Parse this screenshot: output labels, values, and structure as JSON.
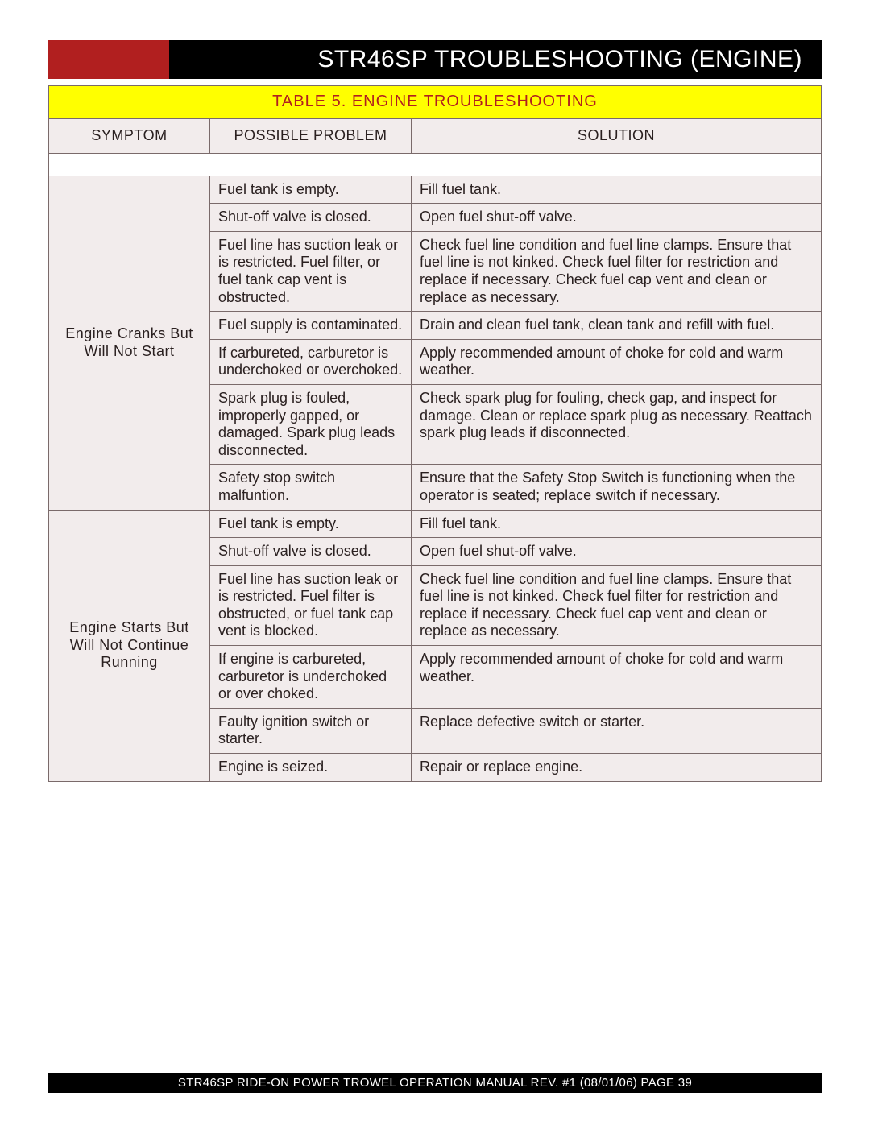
{
  "header": {
    "title": "STR46SP   TROUBLESHOOTING (ENGINE)"
  },
  "table_caption": "TABLE 5.  ENGINE TROUBLESHOOTING",
  "columns": {
    "symptom": "SYMPTOM",
    "problem": "POSSIBLE PROBLEM",
    "solution": "SOLUTION"
  },
  "groups": [
    {
      "symptom": "Engine Cranks But Will Not Start",
      "rows": [
        {
          "problem": "Fuel tank is empty.",
          "solution": "Fill fuel tank."
        },
        {
          "problem": "Shut-off valve is closed.",
          "solution": "Open fuel shut-off valve."
        },
        {
          "problem": "Fuel line has suction leak or is restricted. Fuel filter, or fuel tank cap vent is obstructed.",
          "solution": "Check fuel line condition and fuel line clamps. Ensure that fuel line is not kinked.  Check fuel filter for restriction and replace if necessary.  Check fuel cap vent and clean or replace as necessary."
        },
        {
          "problem": "Fuel supply is contaminated.",
          "solution": "Drain and clean fuel tank, clean tank and refill with fuel."
        },
        {
          "problem": "If carbureted,  carburetor is underchoked or overchoked.",
          "solution": "Apply recommended amount of choke for cold and warm weather."
        },
        {
          "problem": "Spark plug is fouled, improperly gapped, or damaged.  Spark plug leads disconnected.",
          "solution": "Check spark plug for fouling, check gap, and inspect for damage.  Clean or replace spark plug as necessary.  Reattach spark plug leads if disconnected."
        },
        {
          "problem": "Safety stop switch malfuntion.",
          "solution": "Ensure that the Safety Stop Switch is functioning when the operator is seated; replace switch if necessary."
        }
      ]
    },
    {
      "symptom": "Engine Starts But Will Not Continue Running",
      "rows": [
        {
          "problem": "Fuel tank is empty.",
          "solution": "Fill fuel tank."
        },
        {
          "problem": "Shut-off valve is closed.",
          "solution": "Open fuel shut-off valve."
        },
        {
          "problem": "Fuel line has suction leak or is restricted. Fuel filter is obstructed, or fuel tank cap vent is blocked.",
          "solution": "Check fuel line condition and fuel line clamps. Ensure that fuel line is not kinked.  Check fuel filter for restriction and replace if necessary.  Check fuel cap vent and clean or replace as necessary."
        },
        {
          "problem": "If engine is carbureted, carburetor is underchoked or over choked.",
          "solution": "Apply recommended amount of choke for cold and warm weather."
        },
        {
          "problem": "Faulty ignition switch or starter.",
          "solution": "Replace defective switch or starter."
        },
        {
          "problem": "Engine is seized.",
          "solution": "Repair or replace engine."
        }
      ]
    }
  ],
  "footer": {
    "text": "STR46SP    RIDE-ON POWER TROWEL   OPERATION MANUAL   REV. #1 (08/01/06)   PAGE 39"
  },
  "colors": {
    "header_bg": "#000000",
    "header_accent": "#b11f1f",
    "caption_bg": "#ffff00",
    "caption_fg": "#b11f1f",
    "cell_bg": "#f2ecec",
    "border": "#7a6a6a",
    "text": "#2a2020"
  }
}
